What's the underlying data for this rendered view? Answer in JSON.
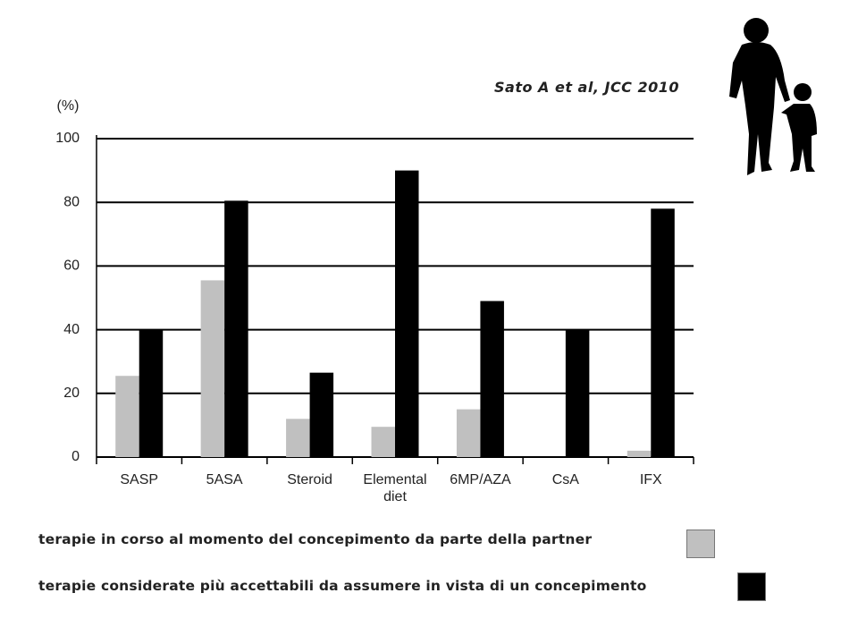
{
  "citation": "Sato A et al, JCC 2010",
  "chart_data": {
    "type": "bar",
    "y_label": "(%)",
    "categories": [
      "SASP",
      "5ASA",
      "Steroid",
      "Elemental diet",
      "6MP/AZA",
      "CsA",
      "IFX"
    ],
    "series": [
      {
        "name": "terapie in corso al momento del concepimento da parte della partner",
        "color": "#c0c0c0",
        "values": [
          25.5,
          55.5,
          12,
          9.5,
          15,
          0,
          2
        ]
      },
      {
        "name": "terapie considerate più accettabili da assumere in vista di un concepimento",
        "color": "#000000",
        "values": [
          40,
          80.5,
          26.5,
          90,
          49,
          40,
          78
        ]
      }
    ],
    "ylim": [
      0,
      100
    ],
    "yticks": [
      0,
      20,
      40,
      60,
      80,
      100
    ],
    "grid": true
  }
}
